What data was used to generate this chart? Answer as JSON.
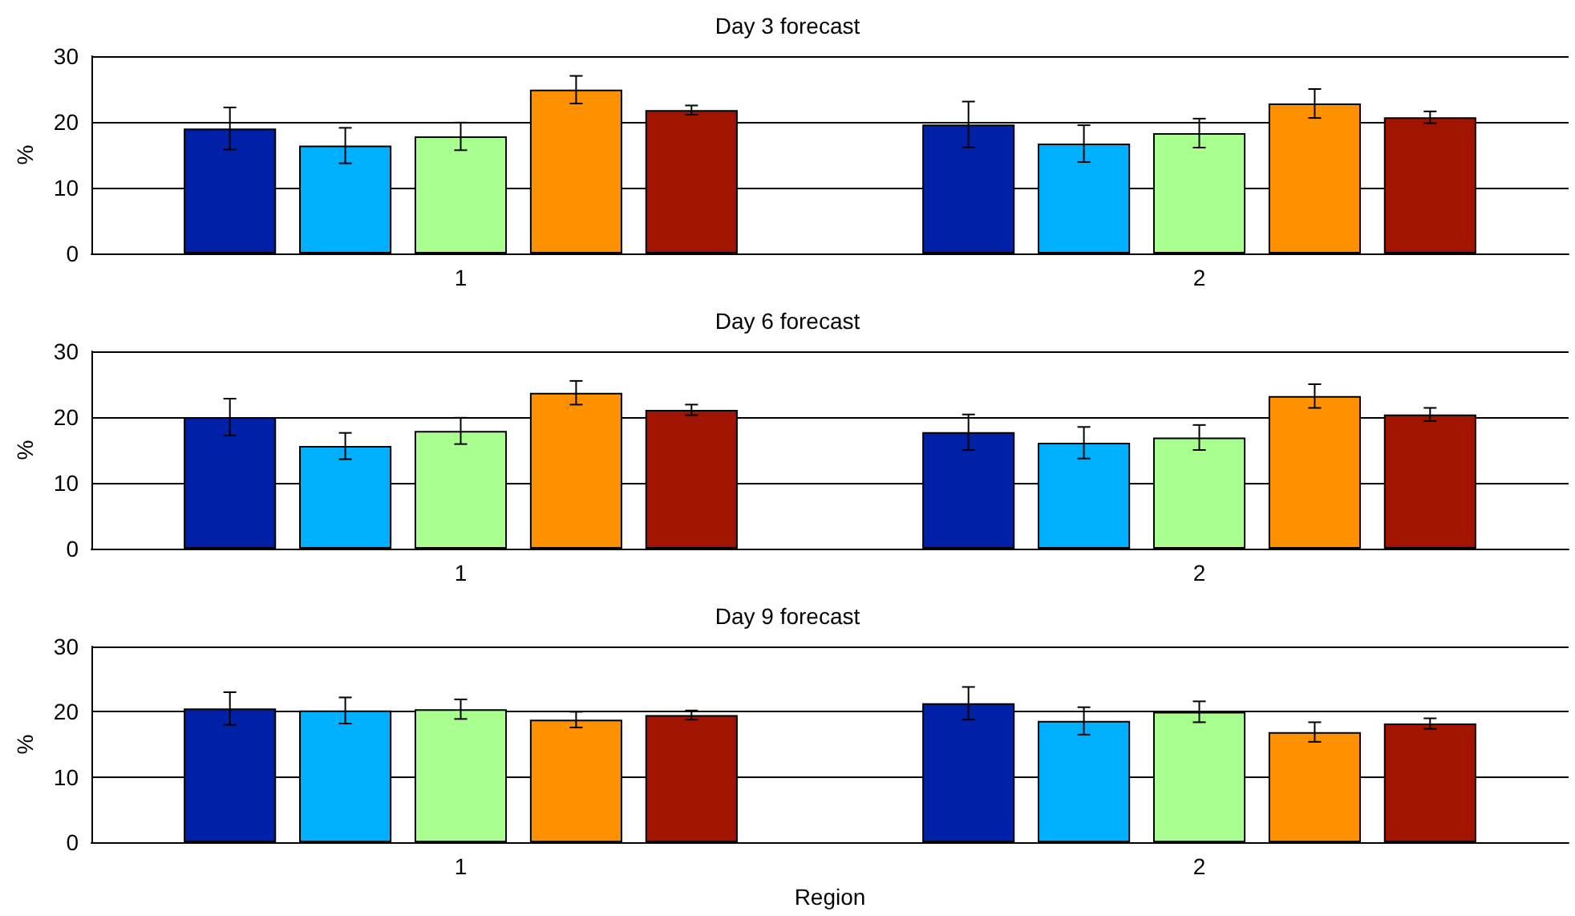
{
  "chart_data": [
    {
      "type": "bar",
      "title": "Day 3 forecast",
      "ylabel": "%",
      "categories": [
        "1",
        "2"
      ],
      "ylim": [
        0,
        30
      ],
      "yticks": [
        0,
        10,
        20,
        30
      ],
      "grid": "y",
      "series": [
        {
          "color": "#0020a8",
          "values": [
            19.0,
            19.6
          ],
          "errors": [
            3.2,
            3.5
          ]
        },
        {
          "color": "#00b0ff",
          "values": [
            16.4,
            16.7
          ],
          "errors": [
            2.7,
            2.8
          ]
        },
        {
          "color": "#a8ff90",
          "values": [
            17.8,
            18.3
          ],
          "errors": [
            2.1,
            2.2
          ]
        },
        {
          "color": "#ff9000",
          "values": [
            24.9,
            22.8
          ],
          "errors": [
            2.1,
            2.2
          ]
        },
        {
          "color": "#a01400",
          "values": [
            21.8,
            20.7
          ],
          "errors": [
            0.7,
            0.9
          ]
        }
      ]
    },
    {
      "type": "bar",
      "title": "Day 6 forecast",
      "ylabel": "%",
      "categories": [
        "1",
        "2"
      ],
      "ylim": [
        0,
        30
      ],
      "yticks": [
        0,
        10,
        20,
        30
      ],
      "grid": "y",
      "series": [
        {
          "color": "#0020a8",
          "values": [
            20.0,
            17.7
          ],
          "errors": [
            2.8,
            2.7
          ]
        },
        {
          "color": "#00b0ff",
          "values": [
            15.6,
            16.1
          ],
          "errors": [
            2.0,
            2.4
          ]
        },
        {
          "color": "#a8ff90",
          "values": [
            17.9,
            16.9
          ],
          "errors": [
            2.0,
            1.9
          ]
        },
        {
          "color": "#ff9000",
          "values": [
            23.7,
            23.2
          ],
          "errors": [
            1.8,
            1.8
          ]
        },
        {
          "color": "#a01400",
          "values": [
            21.1,
            20.4
          ],
          "errors": [
            0.8,
            1.0
          ]
        }
      ]
    },
    {
      "type": "bar",
      "title": "Day 9 forecast",
      "xlabel": "Region",
      "ylabel": "%",
      "categories": [
        "1",
        "2"
      ],
      "ylim": [
        0,
        30
      ],
      "yticks": [
        0,
        10,
        20,
        30
      ],
      "grid": "y",
      "series": [
        {
          "color": "#0020a8",
          "values": [
            20.5,
            21.3
          ],
          "errors": [
            2.5,
            2.5
          ]
        },
        {
          "color": "#00b0ff",
          "values": [
            20.2,
            18.6
          ],
          "errors": [
            2.0,
            2.1
          ]
        },
        {
          "color": "#a8ff90",
          "values": [
            20.4,
            20.0
          ],
          "errors": [
            1.5,
            1.6
          ]
        },
        {
          "color": "#ff9000",
          "values": [
            18.8,
            16.9
          ],
          "errors": [
            1.2,
            1.5
          ]
        },
        {
          "color": "#a01400",
          "values": [
            19.5,
            18.2
          ],
          "errors": [
            0.7,
            0.8
          ]
        }
      ]
    }
  ]
}
